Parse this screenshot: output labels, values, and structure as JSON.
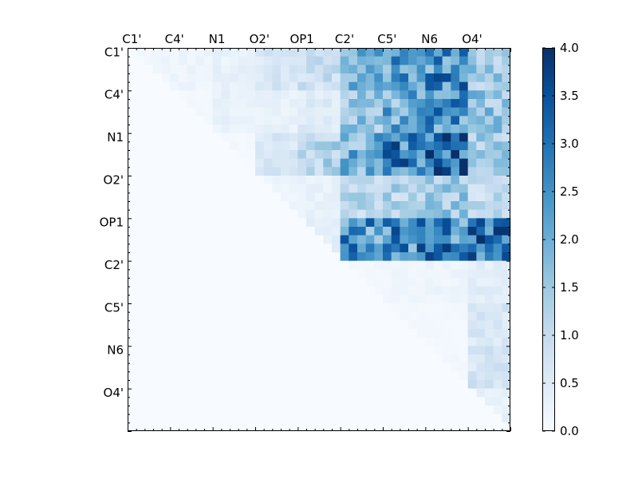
{
  "chart_data": {
    "type": "heatmap",
    "title": "",
    "xlabel": "",
    "ylabel": "",
    "x_tick_labels": [
      "C1'",
      "C4'",
      "N1",
      "O2'",
      "OP1",
      "C2'",
      "C5'",
      "N6",
      "O4'"
    ],
    "y_tick_labels": [
      "C1'",
      "C4'",
      "N1",
      "O2'",
      "OP1",
      "C2'",
      "C5'",
      "N6",
      "O4'"
    ],
    "x_axis_position": "top",
    "n_rows": 45,
    "n_cols": 45,
    "tick_label_step": 5,
    "colormap": [
      "#f7fbff",
      "#deebf7",
      "#c6dbef",
      "#9ecae1",
      "#6baed6",
      "#4292c6",
      "#2171b5",
      "#08519c",
      "#08306b"
    ],
    "value_range": [
      0.0,
      4.0
    ],
    "colorbar": {
      "position": "right",
      "ticks": [
        0.0,
        0.5,
        1.0,
        1.5,
        2.0,
        2.5,
        3.0,
        3.5,
        4.0
      ],
      "tick_labels": [
        "0.0",
        "0.5",
        "1.0",
        "1.5",
        "2.0",
        "2.5",
        "3.0",
        "3.5",
        "4.0"
      ]
    },
    "grid": false,
    "matrix_description": "upper-triangular; values are 0 below the diagonal",
    "row_block_profiles": [
      [
        0.2,
        0.2,
        0.3,
        0.6,
        0.9,
        1.8,
        2.2,
        2.6,
        1.4
      ],
      [
        0.1,
        0.1,
        0.3,
        0.3,
        0.5,
        1.6,
        2.0,
        2.4,
        1.5
      ],
      [
        0.0,
        0.1,
        0.1,
        0.6,
        1.2,
        1.9,
        2.8,
        3.2,
        1.3
      ],
      [
        0.0,
        0.0,
        0.0,
        0.2,
        0.3,
        1.1,
        1.2,
        1.4,
        1.0
      ],
      [
        0.0,
        0.0,
        0.0,
        0.0,
        0.4,
        2.4,
        2.6,
        2.7,
        2.9
      ],
      [
        0.0,
        0.0,
        0.0,
        0.0,
        0.0,
        0.1,
        0.15,
        0.2,
        0.4
      ],
      [
        0.0,
        0.0,
        0.0,
        0.0,
        0.0,
        0.0,
        0.1,
        0.1,
        0.6
      ],
      [
        0.0,
        0.0,
        0.0,
        0.0,
        0.0,
        0.0,
        0.0,
        0.1,
        0.7
      ],
      [
        0.0,
        0.0,
        0.0,
        0.0,
        0.0,
        0.0,
        0.0,
        0.0,
        0.3
      ]
    ]
  }
}
